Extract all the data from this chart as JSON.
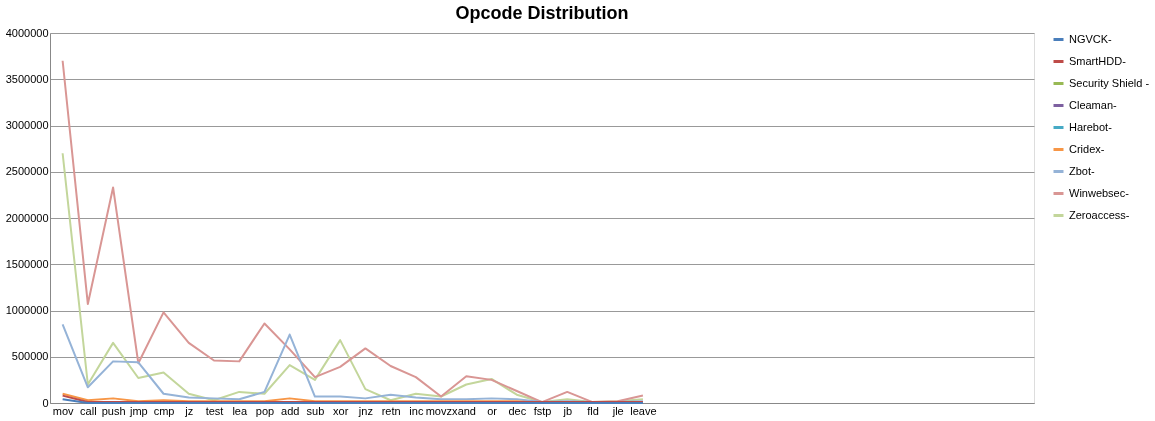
{
  "chart_data": {
    "type": "line",
    "title": "Opcode Distribution",
    "categories": [
      "mov",
      "call",
      "push",
      "jmp",
      "cmp",
      "jz",
      "test",
      "lea",
      "pop",
      "add",
      "sub",
      "xor",
      "jnz",
      "retn",
      "inc",
      "movzx",
      "and",
      "or",
      "dec",
      "fstp",
      "jb",
      "fld",
      "jle",
      "leave",
      null,
      null,
      null,
      null,
      null,
      null,
      null,
      null,
      null,
      null,
      null,
      null,
      null,
      null,
      null
    ],
    "ylim": [
      0,
      4000000
    ],
    "yticks": [
      0,
      500000,
      1000000,
      1500000,
      2000000,
      2500000,
      3000000,
      3500000,
      4000000
    ],
    "grid": "y",
    "legend": "right",
    "marker": "none",
    "line_style": "solid",
    "series": [
      {
        "name": "NGVCK-",
        "color": "#4a7ebb",
        "values": [
          40000,
          0,
          0,
          0,
          0,
          0,
          0,
          0,
          0,
          0,
          0,
          0,
          0,
          0,
          0,
          0,
          0,
          0,
          0,
          0,
          0,
          0,
          0,
          0,
          null,
          null,
          null,
          null,
          null,
          null,
          null,
          null,
          null,
          null,
          null,
          null,
          null,
          null,
          null
        ]
      },
      {
        "name": "SmartHDD-",
        "color": "#be4b48",
        "values": [
          80000,
          10000,
          10000,
          10000,
          10000,
          10000,
          10000,
          10000,
          10000,
          10000,
          10000,
          10000,
          10000,
          10000,
          10000,
          10000,
          10000,
          10000,
          10000,
          10000,
          10000,
          10000,
          10000,
          10000,
          null,
          null,
          null,
          null,
          null,
          null,
          null,
          null,
          null,
          null,
          null,
          null,
          null,
          null,
          null
        ]
      },
      {
        "name": "Security Shield -",
        "color": "#98b954",
        "values": [
          null,
          null,
          null,
          null,
          null,
          null,
          null,
          null,
          null,
          null,
          null,
          null,
          null,
          null,
          null,
          null,
          null,
          null,
          null,
          null,
          null,
          null,
          null,
          null,
          null,
          null,
          null,
          null,
          null,
          null,
          null,
          null,
          null,
          null,
          null,
          null,
          null,
          null,
          null
        ]
      },
      {
        "name": "Cleaman-",
        "color": "#7d60a0",
        "values": [
          null,
          null,
          null,
          null,
          null,
          null,
          null,
          null,
          null,
          null,
          null,
          null,
          null,
          null,
          null,
          null,
          null,
          null,
          null,
          null,
          null,
          null,
          null,
          null,
          null,
          null,
          null,
          null,
          null,
          null,
          null,
          null,
          null,
          null,
          null,
          null,
          null,
          null,
          null
        ]
      },
      {
        "name": "Harebot-",
        "color": "#46aac5",
        "values": [
          null,
          null,
          null,
          null,
          null,
          null,
          null,
          null,
          null,
          null,
          null,
          null,
          null,
          null,
          null,
          null,
          null,
          null,
          null,
          null,
          null,
          null,
          null,
          null,
          null,
          null,
          null,
          null,
          null,
          null,
          null,
          null,
          null,
          null,
          null,
          null,
          null,
          null,
          null
        ]
      },
      {
        "name": "Cridex-",
        "color": "#f79646",
        "values": [
          100000,
          30000,
          50000,
          20000,
          30000,
          20000,
          20000,
          20000,
          20000,
          50000,
          20000,
          20000,
          20000,
          20000,
          20000,
          20000,
          20000,
          20000,
          20000,
          0,
          null,
          null,
          null,
          null,
          null,
          null,
          null,
          null,
          null,
          null,
          null,
          null,
          null,
          null,
          null,
          null,
          null,
          null,
          null
        ]
      },
      {
        "name": "Zbot-",
        "color": "#95b3d7",
        "values": [
          850000,
          170000,
          450000,
          440000,
          100000,
          60000,
          50000,
          40000,
          120000,
          740000,
          70000,
          70000,
          50000,
          90000,
          60000,
          40000,
          40000,
          50000,
          40000,
          10000,
          20000,
          10000,
          10000,
          20000,
          null,
          null,
          null,
          null,
          null,
          null,
          null,
          null,
          null,
          null,
          null,
          null,
          null,
          null,
          null
        ]
      },
      {
        "name": "Winwebsec-",
        "color": "#d99694",
        "values": [
          3700000,
          1070000,
          2330000,
          430000,
          980000,
          650000,
          460000,
          450000,
          860000,
          580000,
          280000,
          390000,
          590000,
          400000,
          280000,
          70000,
          290000,
          250000,
          130000,
          10000,
          120000,
          10000,
          20000,
          80000,
          null,
          null,
          null,
          null,
          null,
          null,
          null,
          null,
          null,
          null,
          null,
          null,
          null,
          null,
          null
        ]
      },
      {
        "name": "Zeroaccess-",
        "color": "#c3d69b",
        "values": [
          2700000,
          200000,
          650000,
          270000,
          330000,
          100000,
          30000,
          120000,
          100000,
          410000,
          250000,
          680000,
          150000,
          30000,
          100000,
          70000,
          200000,
          260000,
          90000,
          10000,
          40000,
          10000,
          20000,
          40000,
          null,
          null,
          null,
          null,
          null,
          null,
          null,
          null,
          null,
          null,
          null,
          null,
          null,
          null,
          null
        ]
      }
    ]
  }
}
